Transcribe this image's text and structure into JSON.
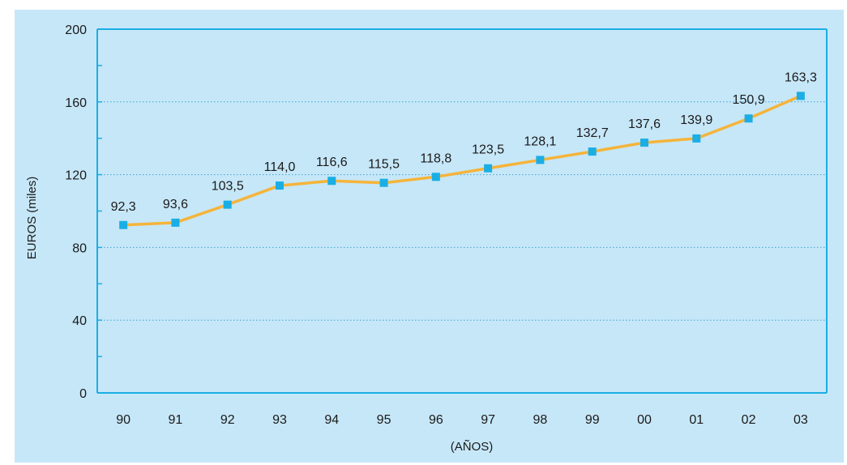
{
  "chart_data": {
    "type": "line",
    "title": "",
    "xlabel": "(AÑOS)",
    "ylabel": "EUROS (miles)",
    "categories": [
      "90",
      "91",
      "92",
      "93",
      "94",
      "95",
      "96",
      "97",
      "98",
      "99",
      "00",
      "01",
      "02",
      "03"
    ],
    "series": [
      {
        "values": [
          92.3,
          93.6,
          103.5,
          114.0,
          116.6,
          115.5,
          118.8,
          123.5,
          128.1,
          132.7,
          137.6,
          139.9,
          150.9,
          163.3
        ],
        "labels": [
          "92,3",
          "93,6",
          "103,5",
          "114,0",
          "116,6",
          "115,5",
          "118,8",
          "123,5",
          "128,1",
          "132,7",
          "137,6",
          "139,9",
          "150,9",
          "163,3"
        ]
      }
    ],
    "ylim": [
      0,
      200
    ],
    "yticks": [
      0,
      40,
      80,
      120,
      160,
      200
    ],
    "ytick_labels": [
      "0",
      "40",
      "80",
      "120",
      "160",
      "200"
    ],
    "grid": "horizontal dotted",
    "legend": "none",
    "colors": {
      "panel_background": "#c6e7f8",
      "line": "#f5b43a",
      "marker": "#1aaee5",
      "gridline": "#3fa3cf",
      "axis": "#1aaee5"
    }
  }
}
